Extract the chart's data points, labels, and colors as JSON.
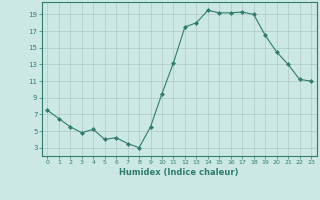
{
  "x": [
    0,
    1,
    2,
    3,
    4,
    5,
    6,
    7,
    8,
    9,
    10,
    11,
    12,
    13,
    14,
    15,
    16,
    17,
    18,
    19,
    20,
    21,
    22,
    23
  ],
  "y": [
    7.5,
    6.5,
    5.5,
    4.8,
    5.2,
    4.0,
    4.2,
    3.5,
    3.0,
    5.5,
    9.5,
    13.2,
    17.5,
    18.0,
    19.5,
    19.2,
    19.2,
    19.3,
    19.0,
    16.5,
    14.5,
    13.0,
    11.2,
    11.0
  ],
  "line_color": "#2e7d6e",
  "marker": "D",
  "marker_size": 2,
  "bg_color": "#cce8e4",
  "grid_color": "#b0c8c4",
  "xlabel": "Humidex (Indice chaleur)",
  "yticks": [
    3,
    5,
    7,
    9,
    11,
    13,
    15,
    17,
    19
  ],
  "xticks": [
    0,
    1,
    2,
    3,
    4,
    5,
    6,
    7,
    8,
    9,
    10,
    11,
    12,
    13,
    14,
    15,
    16,
    17,
    18,
    19,
    20,
    21,
    22,
    23
  ],
  "ylim": [
    2.0,
    20.5
  ],
  "xlim": [
    -0.5,
    23.5
  ]
}
